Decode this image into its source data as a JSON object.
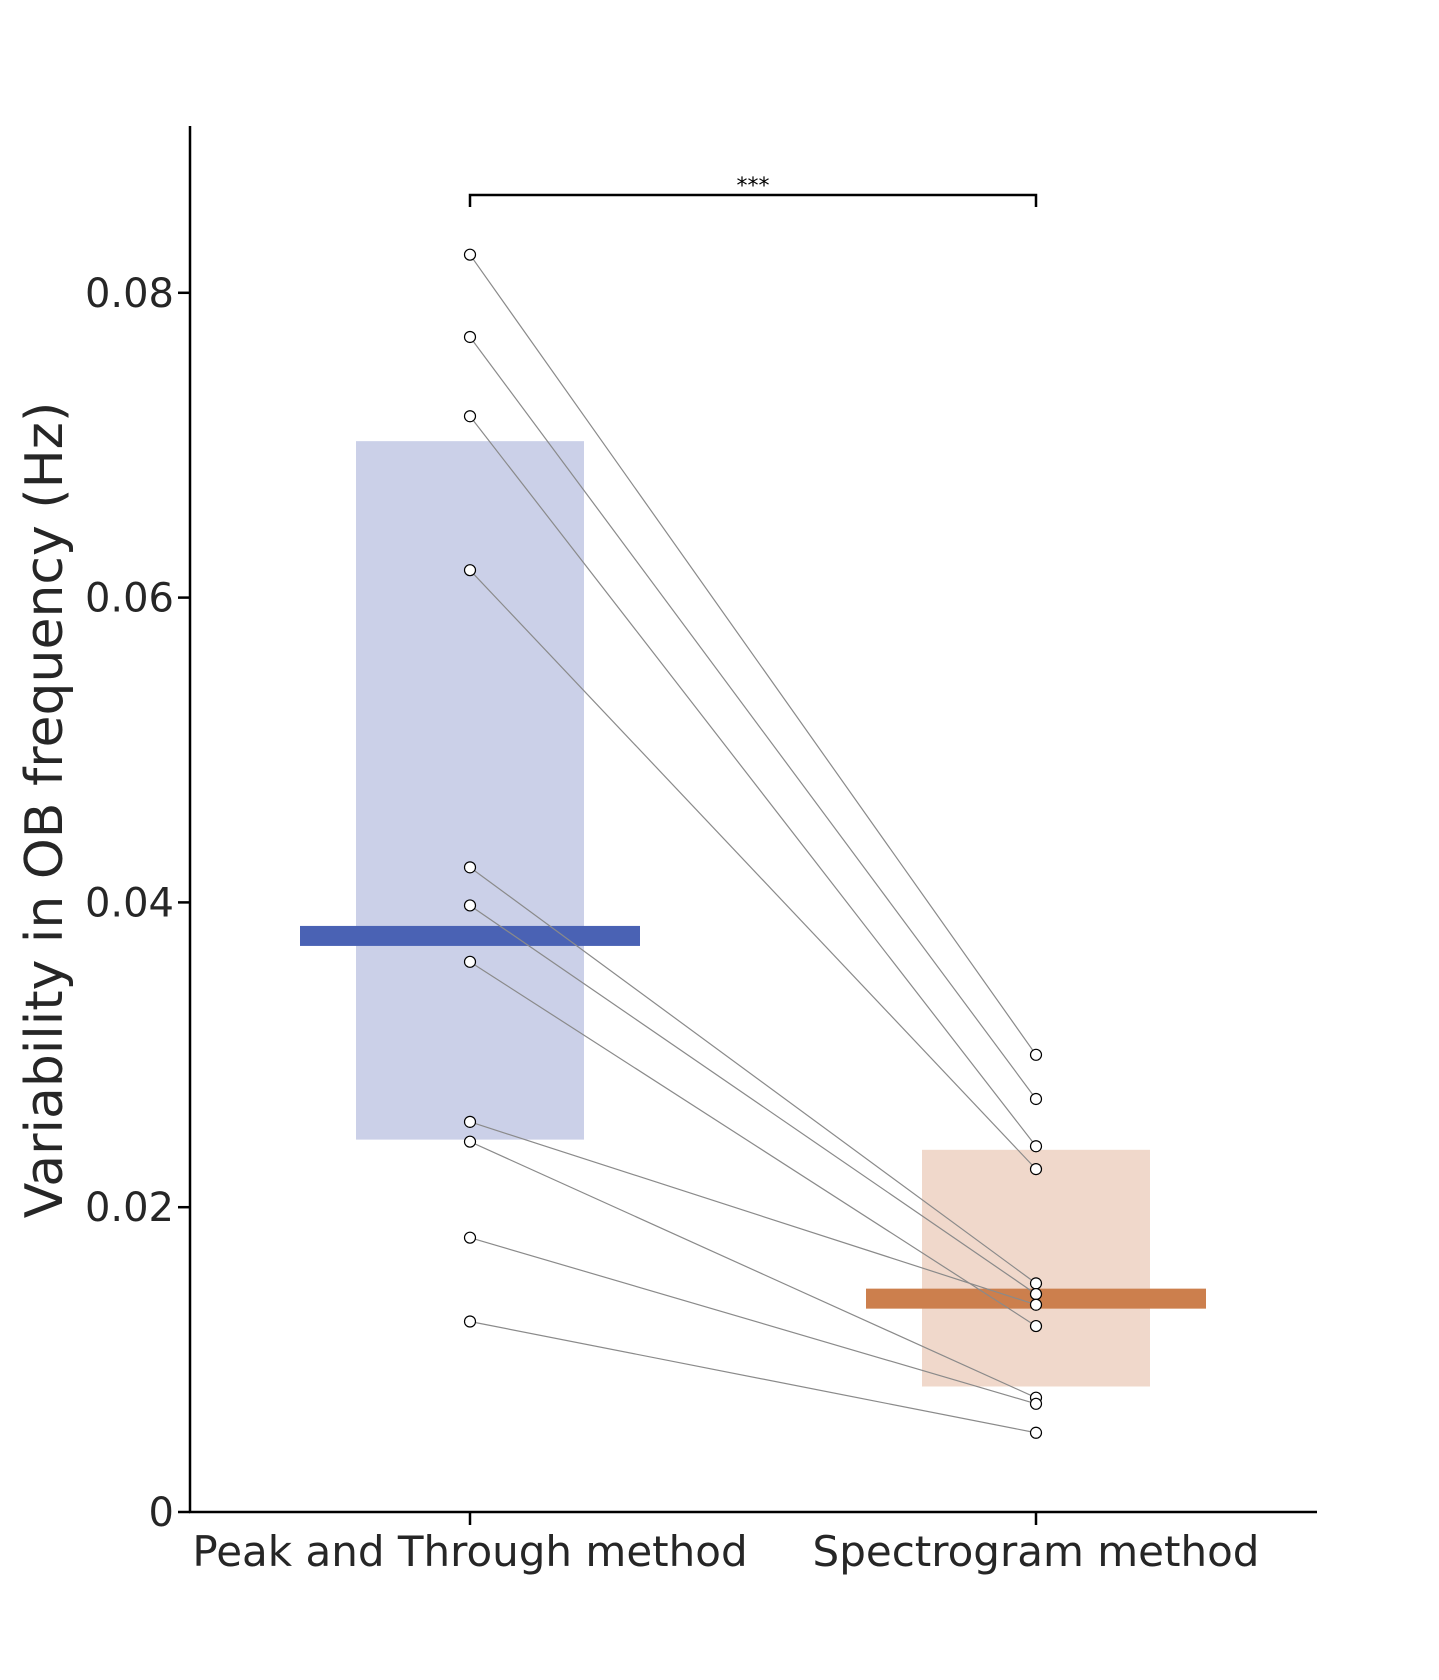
{
  "chart_data": {
    "type": "paired dot plot",
    "ylabel": "Variability in OB frequency (Hz)",
    "xlabel": "",
    "ylim": [
      0,
      0.09
    ],
    "yticks": [
      {
        "value": 0,
        "label": "0"
      },
      {
        "value": 0.02,
        "label": "0.02"
      },
      {
        "value": 0.04,
        "label": "0.04"
      },
      {
        "value": 0.06,
        "label": "0.06"
      },
      {
        "value": 0.08,
        "label": "0.08"
      }
    ],
    "categories": [
      "Peak and Through method",
      "Spectrogram method"
    ],
    "groups": [
      {
        "mean": 0.0378,
        "box_low": 0.0245,
        "box_high": 0.0702,
        "bar_color": "#4a62b4",
        "box_color": "#cbd0e8"
      },
      {
        "mean": 0.014,
        "box_low": 0.0083,
        "box_high": 0.0237,
        "bar_color": "#cc7f4d",
        "box_color": "#f0d8cb"
      }
    ],
    "pairs": [
      [
        0.0825,
        0.03
      ],
      [
        0.0771,
        0.0271
      ],
      [
        0.0719,
        0.024
      ],
      [
        0.0618,
        0.0225
      ],
      [
        0.0423,
        0.015
      ],
      [
        0.0398,
        0.0143
      ],
      [
        0.0361,
        0.0122
      ],
      [
        0.0256,
        0.0136
      ],
      [
        0.0243,
        0.0075
      ],
      [
        0.018,
        0.0071
      ],
      [
        0.0125,
        0.0052
      ]
    ],
    "significance": {
      "label": "***"
    },
    "grid": false,
    "legend": "none"
  }
}
